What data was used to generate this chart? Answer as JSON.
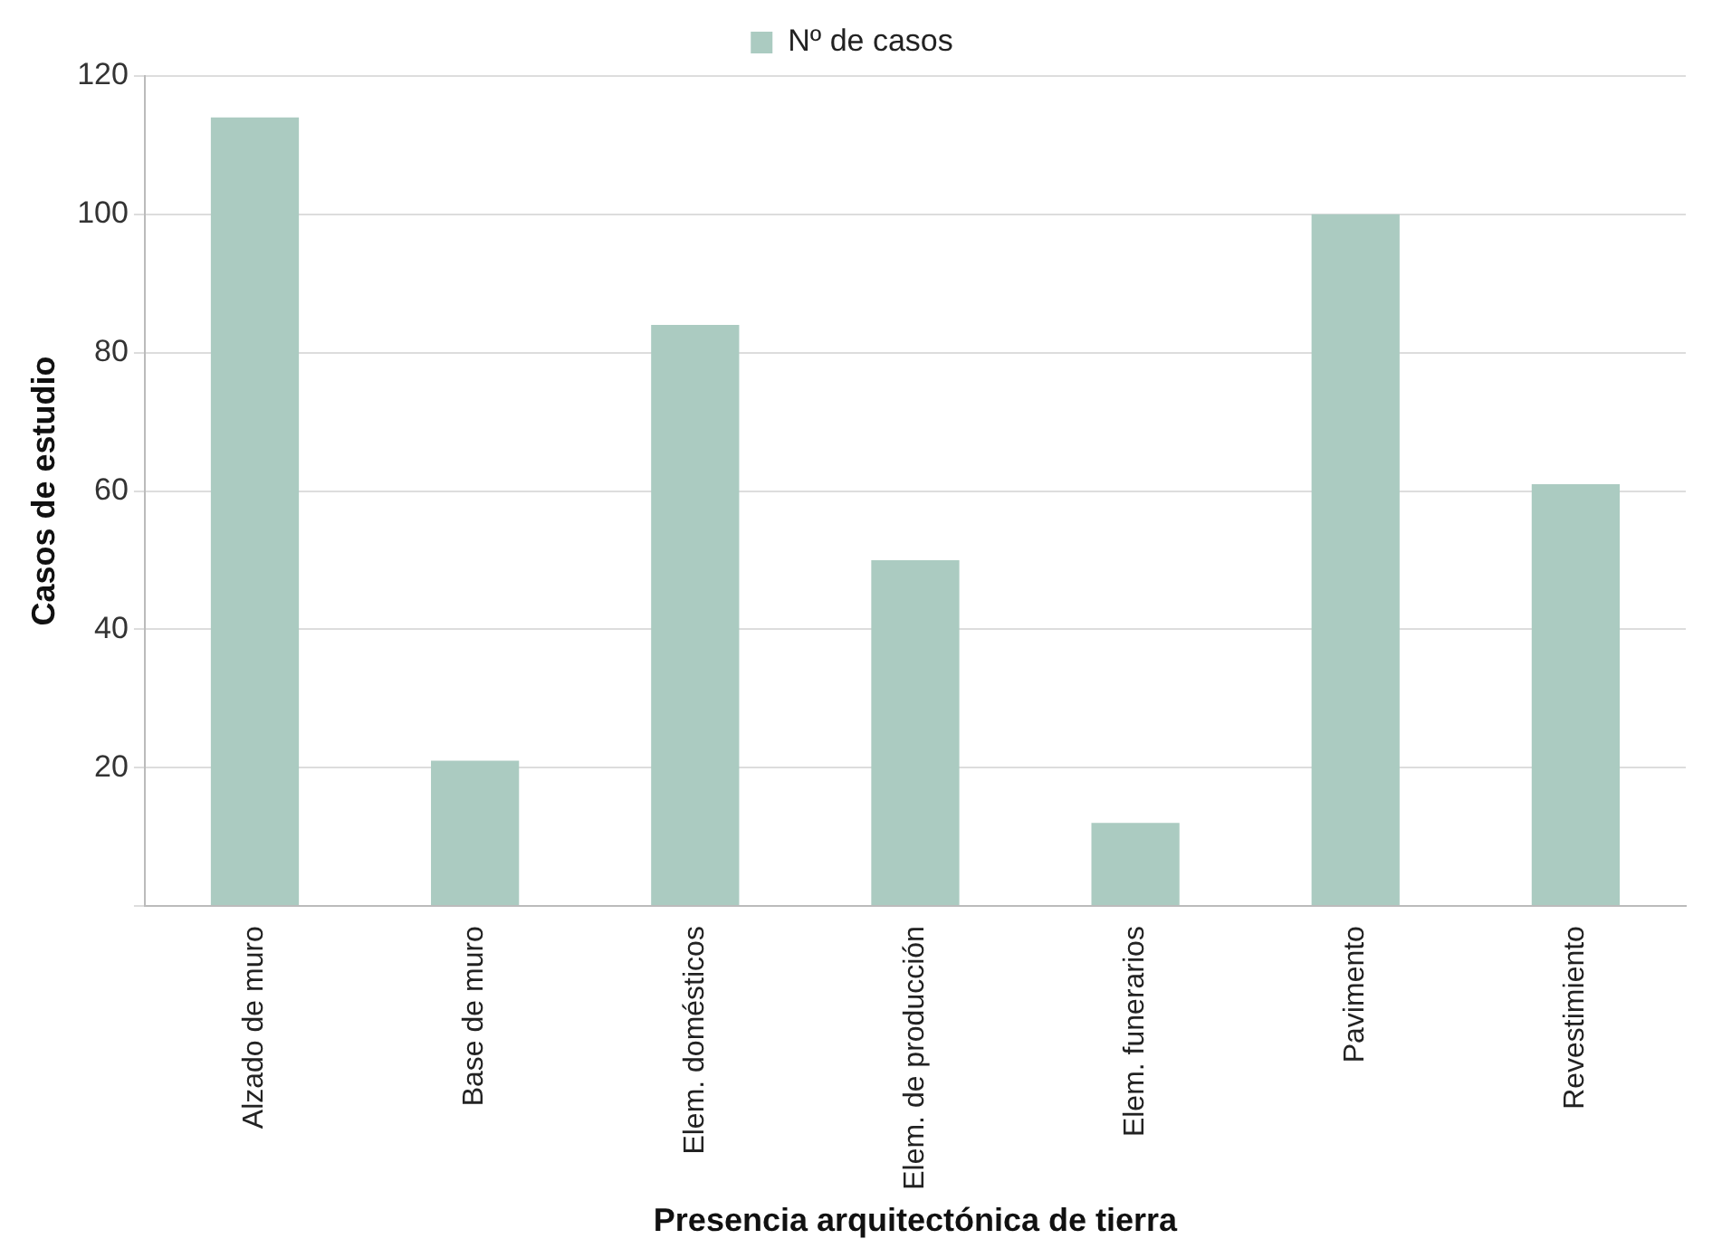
{
  "chart_data": {
    "type": "bar",
    "xlabel": "Presencia arquitectónica de tierra",
    "ylabel": "Casos de estudio",
    "categories": [
      "Alzado de muro",
      "Base de muro",
      "Elem. domésticos",
      "Elem. de producción",
      "Elem. funerarios",
      "Pavimento",
      "Revestimiento"
    ],
    "series": [
      {
        "name": "Nº de casos",
        "color": "#abcbc1",
        "values": [
          114,
          21,
          84,
          50,
          12,
          100,
          61
        ]
      }
    ],
    "ylim": [
      0,
      120
    ],
    "yticks": [
      {
        "value": 0,
        "label": null
      },
      20,
      40,
      60,
      80,
      100,
      120
    ],
    "grid": "y",
    "legend": "top"
  }
}
